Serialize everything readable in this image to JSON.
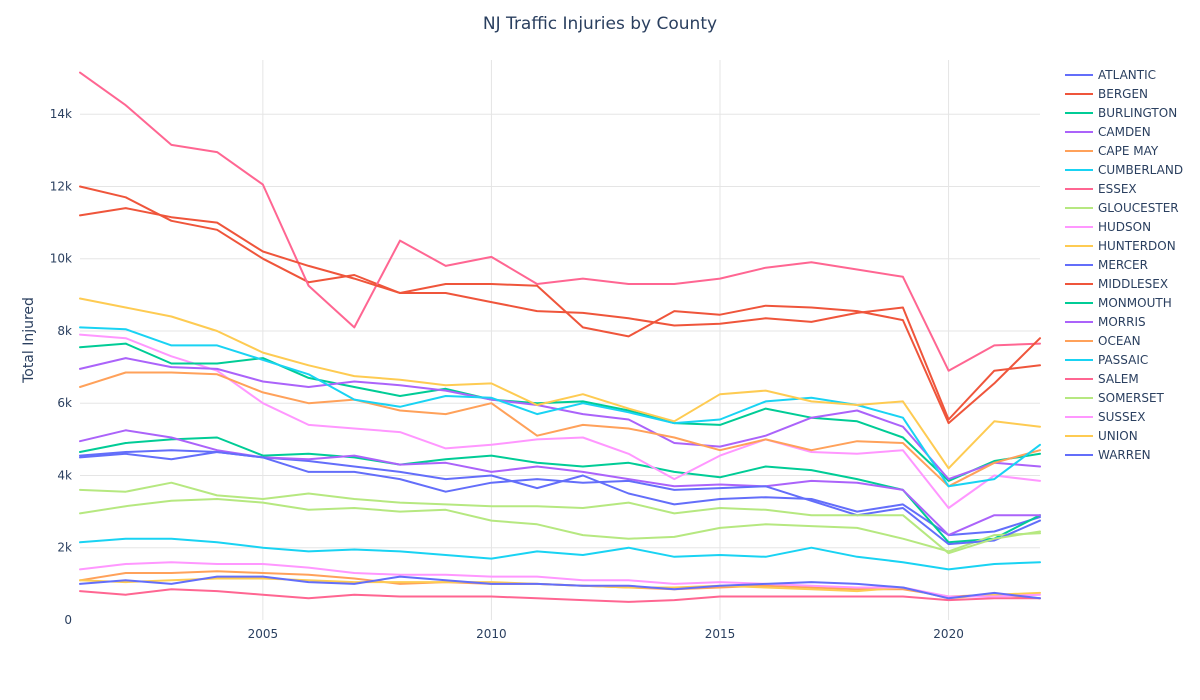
{
  "chart_data": {
    "type": "line",
    "title": "NJ Traffic Injuries by County",
    "xlabel": "",
    "ylabel": "Total Injured",
    "xlim": [
      2001,
      2022
    ],
    "ylim": [
      0,
      15500
    ],
    "x_ticks": [
      2005,
      2010,
      2015,
      2020
    ],
    "y_ticks": [
      {
        "value": 0,
        "label": "0"
      },
      {
        "value": 2000,
        "label": "2k"
      },
      {
        "value": 4000,
        "label": "4k"
      },
      {
        "value": 6000,
        "label": "6k"
      },
      {
        "value": 8000,
        "label": "8k"
      },
      {
        "value": 10000,
        "label": "10k"
      },
      {
        "value": 12000,
        "label": "12k"
      },
      {
        "value": 14000,
        "label": "14k"
      }
    ],
    "grid": true,
    "legend_position": "right",
    "x": [
      2001,
      2002,
      2003,
      2004,
      2005,
      2006,
      2007,
      2008,
      2009,
      2010,
      2011,
      2012,
      2013,
      2014,
      2015,
      2016,
      2017,
      2018,
      2019,
      2020,
      2021,
      2022
    ],
    "series": [
      {
        "name": "ATLANTIC",
        "color": "#636efa",
        "values": [
          4500,
          4600,
          4450,
          4650,
          4500,
          4400,
          4250,
          4100,
          3900,
          4000,
          3650,
          4000,
          3500,
          3200,
          3350,
          3400,
          3350,
          3000,
          3200,
          2350,
          2450,
          2850
        ]
      },
      {
        "name": "BERGEN",
        "color": "#ef553b",
        "values": [
          12000,
          11700,
          11050,
          10800,
          10000,
          9350,
          9550,
          9050,
          9050,
          8800,
          8550,
          8500,
          8350,
          8150,
          8200,
          8350,
          8250,
          8500,
          8650,
          5550,
          6900,
          7050
        ]
      },
      {
        "name": "BURLINGTON",
        "color": "#00cc96",
        "values": [
          4650,
          4900,
          5000,
          5050,
          4550,
          4600,
          4500,
          4300,
          4450,
          4550,
          4350,
          4250,
          4350,
          4100,
          3950,
          4250,
          4150,
          3900,
          3600,
          2150,
          2250,
          2900
        ]
      },
      {
        "name": "CAMDEN",
        "color": "#ab63fa",
        "values": [
          4950,
          5250,
          5050,
          4700,
          4500,
          4450,
          4550,
          4300,
          4350,
          4100,
          4250,
          4100,
          3900,
          3700,
          3750,
          3700,
          3850,
          3800,
          3600,
          2350,
          2900,
          2900
        ]
      },
      {
        "name": "CAPE MAY",
        "color": "#ffa15a",
        "values": [
          1100,
          1300,
          1300,
          1350,
          1300,
          1250,
          1150,
          1000,
          1050,
          1000,
          1000,
          950,
          900,
          850,
          900,
          950,
          900,
          850,
          850,
          650,
          700,
          600
        ]
      },
      {
        "name": "CUMBERLAND",
        "color": "#19d3f3",
        "values": [
          2150,
          2250,
          2250,
          2150,
          2000,
          1900,
          1950,
          1900,
          1800,
          1700,
          1900,
          1800,
          2000,
          1750,
          1800,
          1750,
          2000,
          1750,
          1600,
          1400,
          1550,
          1600
        ]
      },
      {
        "name": "ESSEX",
        "color": "#ff6692",
        "values": [
          15150,
          14250,
          13150,
          12950,
          12050,
          9250,
          8100,
          10500,
          9800,
          10050,
          9300,
          9450,
          9300,
          9300,
          9450,
          9750,
          9900,
          9700,
          9500,
          6900,
          7600,
          7650
        ]
      },
      {
        "name": "GLOUCESTER",
        "color": "#b6e880",
        "values": [
          2950,
          3150,
          3300,
          3350,
          3250,
          3050,
          3100,
          3000,
          3050,
          2750,
          2650,
          2350,
          2250,
          2300,
          2550,
          2650,
          2600,
          2550,
          2250,
          1900,
          2350,
          2400
        ]
      },
      {
        "name": "HUDSON",
        "color": "#ff97ff",
        "values": [
          7900,
          7800,
          7300,
          6900,
          6000,
          5400,
          5300,
          5200,
          4750,
          4850,
          5000,
          5050,
          4600,
          3900,
          4550,
          5000,
          4650,
          4600,
          4700,
          3100,
          4000,
          3850
        ]
      },
      {
        "name": "HUNTERDON",
        "color": "#fecb52",
        "values": [
          1100,
          1050,
          1100,
          1150,
          1150,
          1100,
          1050,
          1050,
          1050,
          1050,
          1000,
          950,
          900,
          900,
          950,
          900,
          850,
          800,
          900,
          600,
          700,
          750
        ]
      },
      {
        "name": "MERCER",
        "color": "#636efa",
        "values": [
          4550,
          4650,
          4700,
          4650,
          4500,
          4100,
          4100,
          3900,
          3550,
          3800,
          3900,
          3800,
          3850,
          3600,
          3650,
          3700,
          3300,
          2900,
          3100,
          2100,
          2200,
          2750
        ]
      },
      {
        "name": "MIDDLESEX",
        "color": "#ef553b",
        "values": [
          11200,
          11400,
          11150,
          11000,
          10200,
          9800,
          9450,
          9050,
          9300,
          9300,
          9250,
          8100,
          7850,
          8550,
          8450,
          8700,
          8650,
          8550,
          8300,
          5450,
          6550,
          7800
        ]
      },
      {
        "name": "MONMOUTH",
        "color": "#00cc96",
        "values": [
          7550,
          7650,
          7100,
          7100,
          7250,
          6700,
          6450,
          6200,
          6400,
          6100,
          6000,
          6050,
          5800,
          5450,
          5400,
          5850,
          5600,
          5500,
          5050,
          3850,
          4400,
          4600
        ]
      },
      {
        "name": "MORRIS",
        "color": "#ab63fa",
        "values": [
          6950,
          7250,
          7000,
          6950,
          6600,
          6450,
          6600,
          6500,
          6350,
          6100,
          5950,
          5700,
          5550,
          4900,
          4800,
          5100,
          5600,
          5800,
          5350,
          3900,
          4350,
          4250
        ]
      },
      {
        "name": "OCEAN",
        "color": "#ffa15a",
        "values": [
          6450,
          6850,
          6850,
          6800,
          6300,
          6000,
          6100,
          5800,
          5700,
          6000,
          5100,
          5400,
          5300,
          5050,
          4700,
          5000,
          4700,
          4950,
          4900,
          3700,
          4350,
          4700
        ]
      },
      {
        "name": "PASSAIC",
        "color": "#19d3f3",
        "values": [
          8100,
          8050,
          7600,
          7600,
          7200,
          6800,
          6100,
          5900,
          6200,
          6150,
          5700,
          6000,
          5750,
          5450,
          5550,
          6050,
          6150,
          5950,
          5600,
          3700,
          3900,
          4850
        ]
      },
      {
        "name": "SALEM",
        "color": "#ff6692",
        "values": [
          800,
          700,
          850,
          800,
          700,
          600,
          700,
          650,
          650,
          650,
          600,
          550,
          500,
          550,
          650,
          650,
          650,
          650,
          650,
          550,
          600,
          600
        ]
      },
      {
        "name": "SOMERSET",
        "color": "#b6e880",
        "values": [
          3600,
          3550,
          3800,
          3450,
          3350,
          3500,
          3350,
          3250,
          3200,
          3150,
          3150,
          3100,
          3250,
          2950,
          3100,
          3050,
          2900,
          2900,
          2900,
          1850,
          2250,
          2450
        ]
      },
      {
        "name": "SUSSEX",
        "color": "#ff97ff",
        "values": [
          1400,
          1550,
          1600,
          1550,
          1550,
          1450,
          1300,
          1250,
          1250,
          1200,
          1200,
          1100,
          1100,
          1000,
          1050,
          1000,
          950,
          900,
          900,
          650,
          650,
          700
        ]
      },
      {
        "name": "UNION",
        "color": "#fecb52",
        "values": [
          8900,
          8650,
          8400,
          8000,
          7400,
          7050,
          6750,
          6650,
          6500,
          6550,
          5950,
          6250,
          5850,
          5500,
          6250,
          6350,
          6050,
          5950,
          6050,
          4200,
          5500,
          5350
        ]
      },
      {
        "name": "WARREN",
        "color": "#636efa",
        "values": [
          1000,
          1100,
          1000,
          1200,
          1200,
          1050,
          1000,
          1200,
          1100,
          1000,
          1000,
          950,
          950,
          850,
          950,
          1000,
          1050,
          1000,
          900,
          600,
          750,
          600
        ]
      }
    ]
  }
}
